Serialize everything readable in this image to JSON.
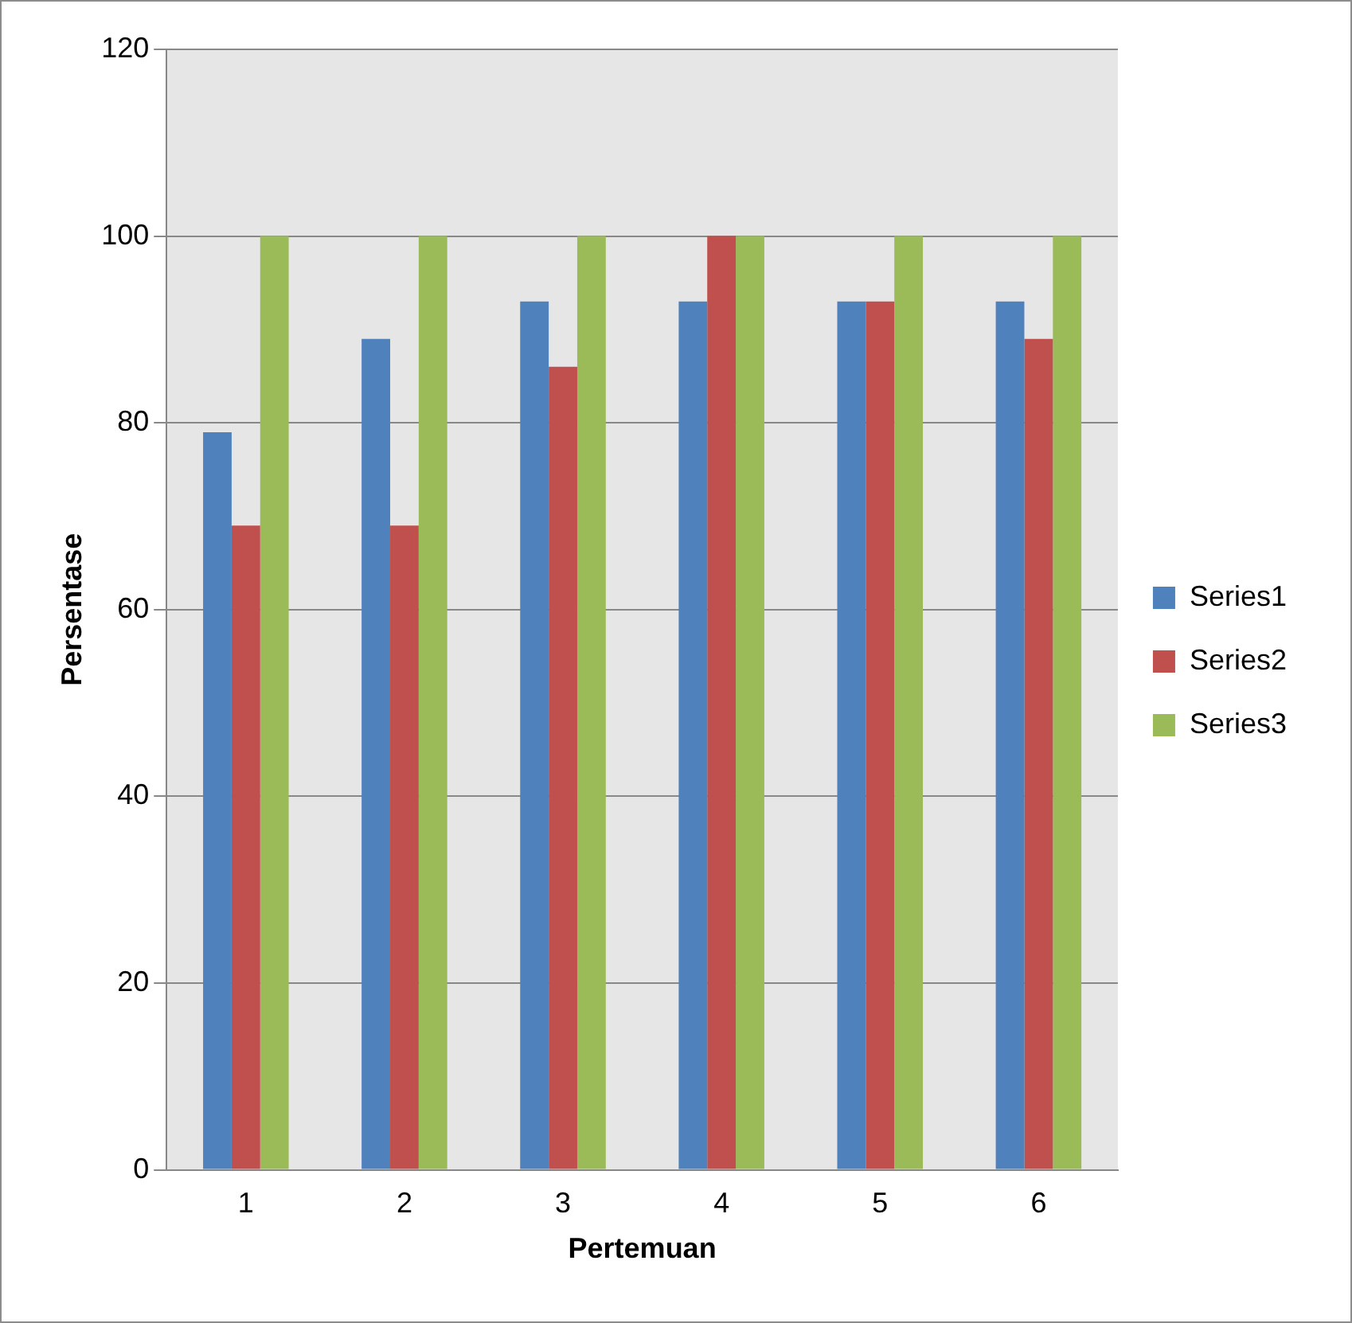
{
  "chart_data": {
    "type": "bar",
    "xlabel": "Pertemuan",
    "ylabel": "Persentase",
    "categories": [
      "1",
      "2",
      "3",
      "4",
      "5",
      "6"
    ],
    "series": [
      {
        "name": "Series1",
        "color": "#4f81bd",
        "values": [
          79,
          89,
          93,
          93,
          93,
          93
        ]
      },
      {
        "name": "Series2",
        "color": "#c0504d",
        "values": [
          69,
          69,
          86,
          100,
          93,
          89
        ]
      },
      {
        "name": "Series3",
        "color": "#9bbb59",
        "values": [
          100,
          100,
          100,
          100,
          100,
          100
        ]
      }
    ],
    "ylim": [
      0,
      120
    ],
    "yticks": [
      0,
      20,
      40,
      60,
      80,
      100,
      120
    ],
    "grid": "y",
    "legend": "right"
  }
}
